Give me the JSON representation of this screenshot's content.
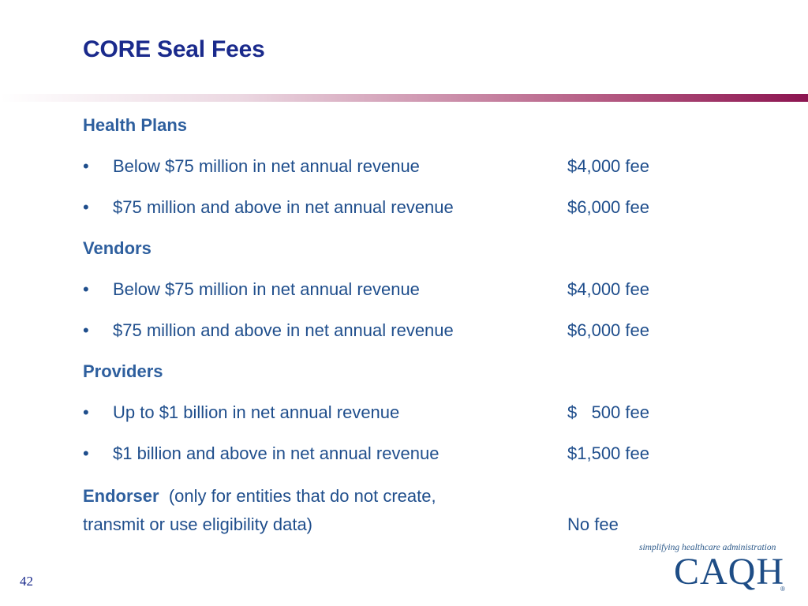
{
  "slide": {
    "title": "CORE Seal Fees",
    "page_number": "42"
  },
  "sections": [
    {
      "heading": "Health Plans",
      "items": [
        {
          "bullet": "•",
          "label": "Below $75 million in net annual revenue",
          "fee": "$4,000 fee"
        },
        {
          "bullet": "•",
          "label": "$75 million and above in net annual revenue",
          "fee": "$6,000 fee"
        }
      ]
    },
    {
      "heading": "Vendors",
      "items": [
        {
          "bullet": "•",
          "label": "Below $75 million in net annual revenue",
          "fee": "$4,000 fee"
        },
        {
          "bullet": "•",
          "label": "$75 million and above in net annual revenue",
          "fee": "$6,000 fee"
        }
      ]
    },
    {
      "heading": "Providers",
      "items": [
        {
          "bullet": "•",
          "label": "Up to $1 billion in net annual revenue",
          "fee": "$   500 fee"
        },
        {
          "bullet": "•",
          "label": "$1 billion and above in net annual revenue",
          "fee": "$1,500 fee"
        }
      ]
    }
  ],
  "endorser": {
    "label": "Endorser",
    "note_line1": "(only for entities that do not create,",
    "note_line2": "transmit or use eligibility data)",
    "fee": "No fee"
  },
  "logo": {
    "tagline": "simplifying healthcare administration",
    "wordmark": "CAQH",
    "registered": "®"
  },
  "colors": {
    "title": "#1a2a8c",
    "heading": "#2e5f9e",
    "body_text": "#1f4e8c",
    "rule_end": "#8c1450"
  }
}
